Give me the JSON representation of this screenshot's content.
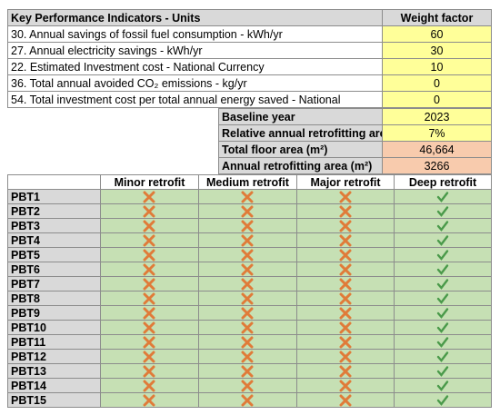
{
  "kpi_table": {
    "header": [
      "Key Performance Indicators - Units",
      "Weight factor"
    ],
    "rows": [
      [
        "30. Annual savings of fossil fuel consumption - kWh/yr",
        "60"
      ],
      [
        "27. Annual electricity savings  - kWh/yr",
        "30"
      ],
      [
        "22. Estimated Investment cost - National Currency",
        "10"
      ],
      [
        "36. Total annual avoided CO₂  emissions  - kg/yr",
        "0"
      ],
      [
        "54. Total investment cost per total annual energy saved  - National",
        "0"
      ]
    ]
  },
  "parameters": {
    "rows": [
      [
        "Baseline year",
        "2023"
      ],
      [
        "Relative annual retrofitting area",
        "7%"
      ],
      [
        "Total floor area (m²)",
        "46,664"
      ],
      [
        "Annual retrofitting area (m²)",
        "3266"
      ]
    ]
  },
  "retrofit_table": {
    "header": [
      "Minor retrofit",
      "Medium retrofit",
      "Major retrofit",
      "Deep retrofit"
    ],
    "rows": [
      "PBT1",
      "PBT2",
      "PBT3",
      "PBT4",
      "PBT5",
      "PBT6",
      "PBT7",
      "PBT8",
      "PBT9",
      "PBT10",
      "PBT11",
      "PBT12",
      "PBT13",
      "PBT14",
      "PBT15"
    ]
  }
}
